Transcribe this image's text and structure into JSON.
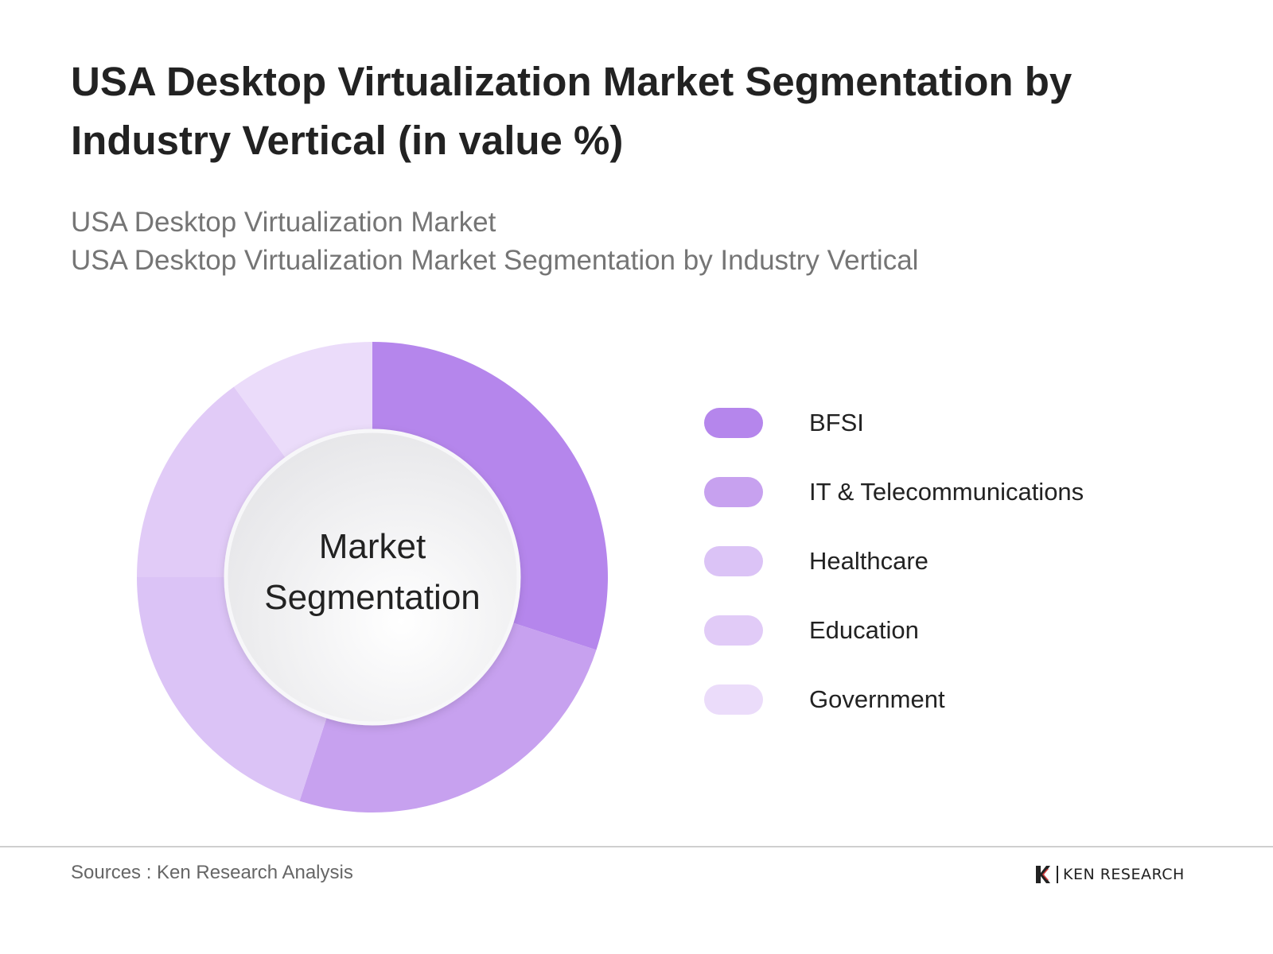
{
  "header": {
    "title": "USA Desktop Virtualization Market Segmentation by Industry Vertical (in value %)",
    "subtitle_line1": "USA Desktop Virtualization Market",
    "subtitle_line2": "USA Desktop Virtualization Market Segmentation by Industry Vertical"
  },
  "chart_data": {
    "type": "pie",
    "variant": "donut",
    "title": "USA Desktop Virtualization Market Segmentation by Industry Vertical (in value %)",
    "center_label_line1": "Market",
    "center_label_line2": "Segmentation",
    "categories": [
      "BFSI",
      "IT & Telecommunications",
      "Healthcare",
      "Education",
      "Government"
    ],
    "values": [
      30,
      25,
      20,
      15,
      10
    ],
    "colors": [
      "#b586ec",
      "#c7a1ef",
      "#dbc3f6",
      "#e1cbf7",
      "#ebdcfa"
    ],
    "legend": "right"
  },
  "footer": {
    "source": "Sources : Ken Research Analysis",
    "brand": "KEN RESEARCH"
  }
}
